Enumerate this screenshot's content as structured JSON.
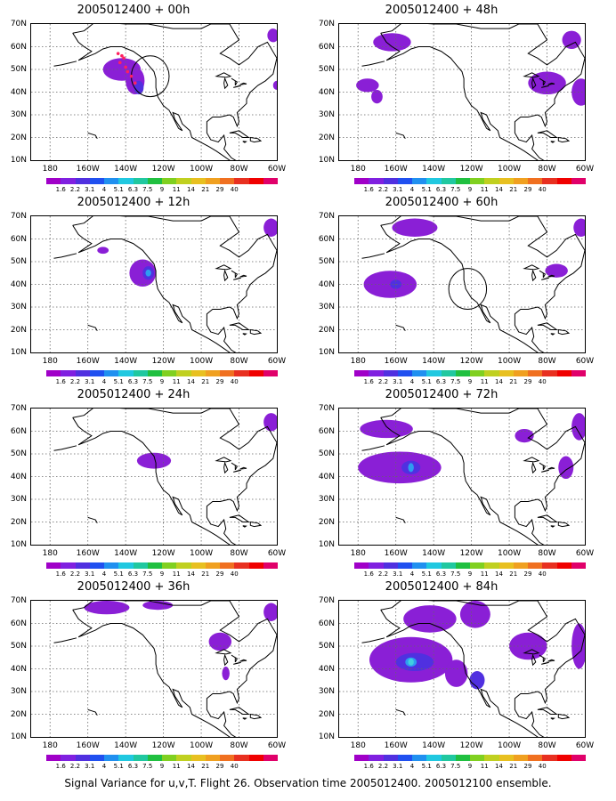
{
  "panels": [
    {
      "title": "2005012400 + 00h",
      "col": 0,
      "row": 0,
      "circle": true,
      "dots": true,
      "blobs": [
        [
          -142,
          50,
          10,
          5,
          "#8a1fd6"
        ],
        [
          -135,
          45,
          5,
          6,
          "#8a1fd6"
        ],
        [
          -133,
          42,
          2.5,
          3,
          "#5030e0"
        ],
        [
          -62,
          65,
          3,
          3,
          "#8a1fd6"
        ],
        [
          -60,
          43,
          2,
          2,
          "#8a1fd6"
        ]
      ]
    },
    {
      "title": "2005012400 + 48h",
      "col": 1,
      "row": 0,
      "circle": false,
      "dots": false,
      "blobs": [
        [
          -162,
          62,
          10,
          4,
          "#8a1fd6"
        ],
        [
          -175,
          43,
          6,
          3,
          "#8a1fd6"
        ],
        [
          -170,
          38,
          3,
          3,
          "#8a1fd6"
        ],
        [
          -80,
          44,
          10,
          5,
          "#8a1fd6"
        ],
        [
          -67,
          63,
          5,
          4,
          "#8a1fd6"
        ],
        [
          -62,
          40,
          5,
          6,
          "#8a1fd6"
        ]
      ]
    },
    {
      "title": "2005012400 + 12h",
      "col": 0,
      "row": 1,
      "circle": false,
      "dots": false,
      "blobs": [
        [
          -131,
          45,
          7,
          6,
          "#8a1fd6"
        ],
        [
          -128,
          45,
          3,
          3,
          "#5030e0"
        ],
        [
          -128,
          45,
          1.5,
          1.5,
          "#2e9cf0"
        ],
        [
          -152,
          55,
          3,
          1.5,
          "#8a1fd6"
        ],
        [
          -63,
          65,
          4,
          4,
          "#8a1fd6"
        ]
      ]
    },
    {
      "title": "2005012400 + 60h",
      "col": 1,
      "row": 1,
      "circle": true,
      "dots": false,
      "blobs": [
        [
          -163,
          40,
          14,
          6,
          "#8a1fd6"
        ],
        [
          -160,
          40,
          3,
          2,
          "#5030e0"
        ],
        [
          -150,
          65,
          12,
          4,
          "#8a1fd6"
        ],
        [
          -75,
          46,
          6,
          3,
          "#8a1fd6"
        ],
        [
          -62,
          65,
          4,
          4,
          "#8a1fd6"
        ]
      ]
    },
    {
      "title": "2005012400 + 24h",
      "col": 0,
      "row": 2,
      "circle": false,
      "dots": false,
      "blobs": [
        [
          -125,
          47,
          9,
          3.5,
          "#8a1fd6"
        ],
        [
          -63,
          64,
          4,
          4,
          "#8a1fd6"
        ]
      ]
    },
    {
      "title": "2005012400 + 72h",
      "col": 1,
      "row": 2,
      "circle": false,
      "dots": false,
      "blobs": [
        [
          -158,
          44,
          22,
          7,
          "#8a1fd6"
        ],
        [
          -152,
          44,
          5,
          3,
          "#5030e0"
        ],
        [
          -152,
          44,
          1.5,
          2,
          "#2e9cf0"
        ],
        [
          -165,
          61,
          14,
          4,
          "#8a1fd6"
        ],
        [
          -92,
          58,
          5,
          3,
          "#8a1fd6"
        ],
        [
          -63,
          62,
          4,
          6,
          "#8a1fd6"
        ],
        [
          -70,
          44,
          4,
          5,
          "#8a1fd6"
        ]
      ]
    },
    {
      "title": "2005012400 + 36h",
      "col": 0,
      "row": 3,
      "circle": false,
      "dots": false,
      "blobs": [
        [
          -150,
          67,
          12,
          3,
          "#8a1fd6"
        ],
        [
          -123,
          68,
          8,
          2,
          "#8a1fd6"
        ],
        [
          -90,
          52,
          6,
          4,
          "#8a1fd6"
        ],
        [
          -87,
          38,
          2,
          3,
          "#8a1fd6"
        ],
        [
          -63,
          65,
          4,
          4,
          "#8a1fd6"
        ]
      ]
    },
    {
      "title": "2005012400 + 84h",
      "col": 1,
      "row": 3,
      "circle": false,
      "dots": false,
      "blobs": [
        [
          -152,
          44,
          22,
          10,
          "#8a1fd6"
        ],
        [
          -150,
          43,
          10,
          4,
          "#5030e0"
        ],
        [
          -152,
          43,
          3,
          2,
          "#2e9cf0"
        ],
        [
          -152,
          43,
          1.5,
          1.5,
          "#40d0e0"
        ],
        [
          -142,
          62,
          14,
          6,
          "#8a1fd6"
        ],
        [
          -118,
          64,
          8,
          6,
          "#8a1fd6"
        ],
        [
          -128,
          38,
          6,
          6,
          "#8a1fd6"
        ],
        [
          -117,
          35,
          4,
          4,
          "#5030e0"
        ],
        [
          -90,
          50,
          10,
          6,
          "#8a1fd6"
        ],
        [
          -63,
          50,
          4,
          10,
          "#8a1fd6"
        ]
      ]
    }
  ],
  "ylabels": [
    "70N",
    "60N",
    "50N",
    "40N",
    "30N",
    "20N",
    "10N"
  ],
  "xlabels": [
    "180",
    "160W",
    "140W",
    "120W",
    "100W",
    "80W",
    "60W"
  ],
  "colorbar": {
    "colors": [
      "#a000c8",
      "#8020e0",
      "#5030e0",
      "#2050f0",
      "#2090f0",
      "#20c8e0",
      "#20c8a0",
      "#20c040",
      "#80d020",
      "#c0d020",
      "#e8c020",
      "#f0a020",
      "#f07020",
      "#e83020",
      "#f00000",
      "#e0006a"
    ],
    "labels": [
      "1.6",
      "2.2",
      "3.1",
      "4",
      "5.1",
      "6.3",
      "7.5",
      "9",
      "11",
      "14",
      "21",
      "29",
      "40"
    ]
  },
  "caption": "Signal Variance for u,v,T. Flight 26. Observation time 2005012400. 2005012100 ensemble."
}
